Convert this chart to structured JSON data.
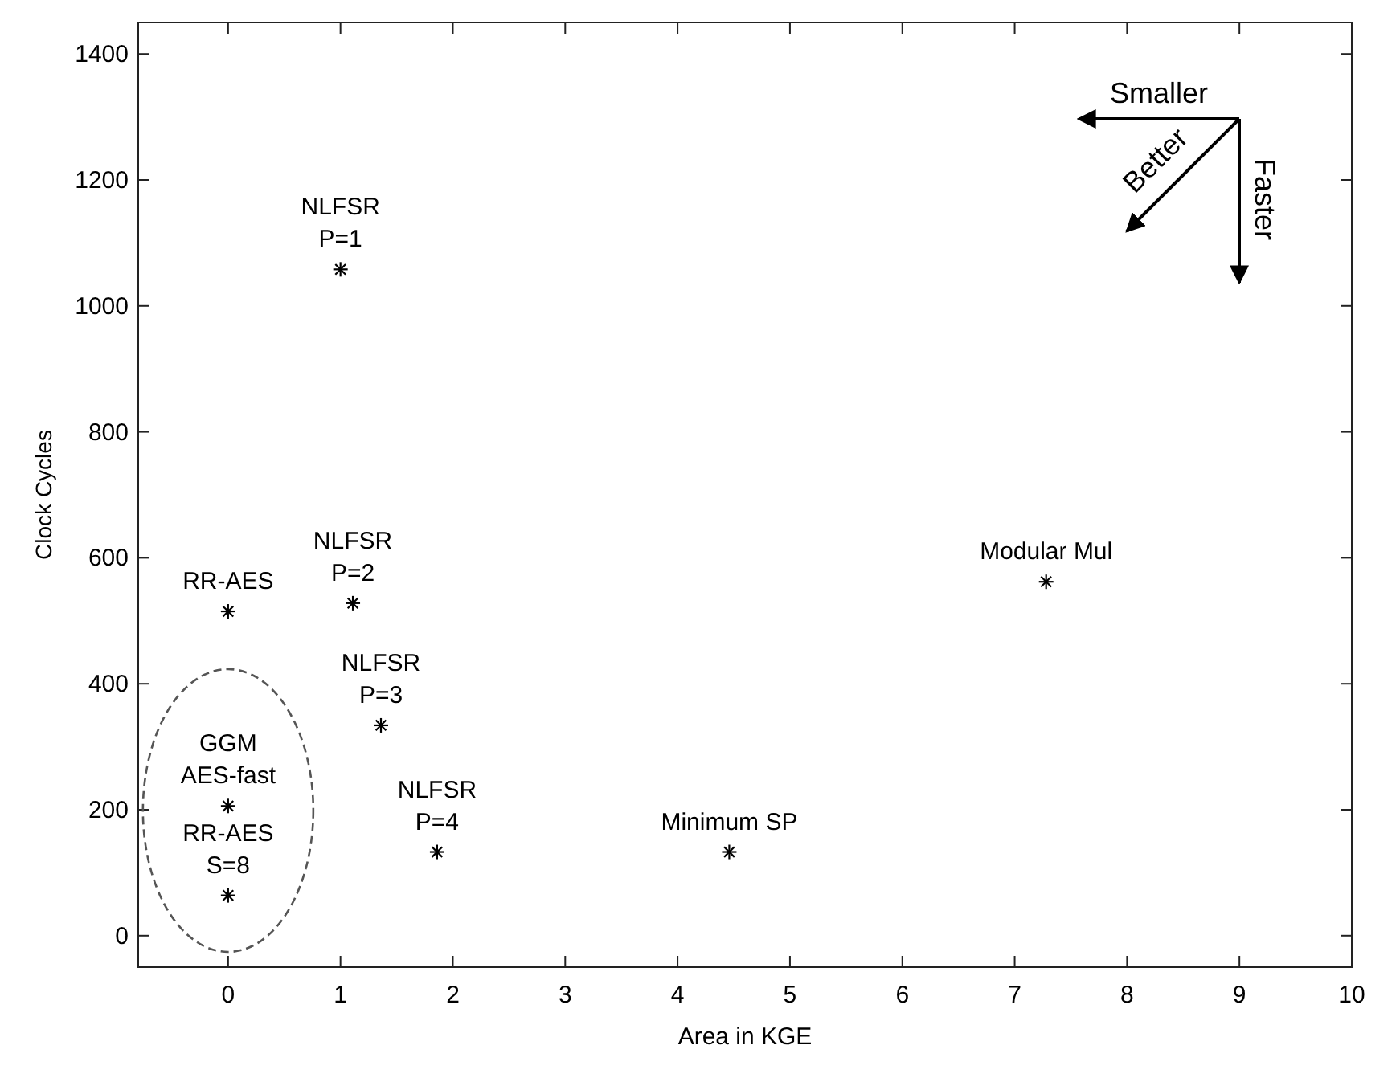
{
  "chart_data": {
    "type": "scatter",
    "xlabel": "Area in KGE",
    "ylabel": "Clock Cycles",
    "x": [
      1.0,
      0,
      1.11,
      7.28,
      1.36,
      1.86,
      4.46,
      0,
      0
    ],
    "series": [
      {
        "color": "#000000",
        "values": [
          1058,
          515,
          528,
          562,
          334,
          133,
          133,
          206,
          64
        ]
      }
    ],
    "marker": "cross",
    "grid": false,
    "xlim": [
      -0.8,
      10
    ],
    "ylim": [
      -50,
      1450
    ],
    "xticks": [
      0,
      1,
      2,
      3,
      4,
      5,
      6,
      7,
      8,
      9,
      10
    ],
    "yticks": [
      0,
      200,
      400,
      600,
      800,
      1000,
      1200,
      1400
    ],
    "annotations": [
      {
        "text": "NLFSR\nP=1",
        "x": 1.0,
        "y": 1058
      },
      {
        "text": "RR-AES",
        "x": 0,
        "y": 515
      },
      {
        "text": "NLFSR\nP=2",
        "x": 1.11,
        "y": 528
      },
      {
        "text": "Modular Mul",
        "x": 7.28,
        "y": 562
      },
      {
        "text": "NLFSR\nP=3",
        "x": 1.36,
        "y": 334
      },
      {
        "text": "NLFSR\nP=4",
        "x": 1.86,
        "y": 133
      },
      {
        "text": "Minimum SP",
        "x": 4.46,
        "y": 133
      },
      {
        "text": "GGM\nAES-fast",
        "x": 0,
        "y": 206
      },
      {
        "text": "RR-AES\nS=8",
        "x": 0,
        "y": 64
      },
      "Smaller",
      "Better",
      "Faster"
    ]
  }
}
